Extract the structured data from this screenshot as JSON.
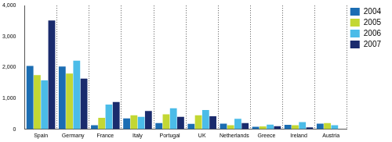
{
  "chart_data": {
    "type": "bar",
    "categories": [
      "Spain",
      "Germany",
      "France",
      "Italy",
      "Portugal",
      "UK",
      "Netherlands",
      "Greece",
      "Ireland",
      "Austria"
    ],
    "series": [
      {
        "name": "2004",
        "color": "#1b6db3",
        "values": [
          2050,
          2030,
          130,
          350,
          200,
          170,
          180,
          80,
          140,
          180
        ]
      },
      {
        "name": "2005",
        "color": "#c3d733",
        "values": [
          1750,
          1800,
          370,
          450,
          480,
          450,
          130,
          90,
          130,
          200
        ]
      },
      {
        "name": "2006",
        "color": "#4bbce8",
        "values": [
          1580,
          2220,
          800,
          400,
          680,
          620,
          340,
          150,
          230,
          130
        ]
      },
      {
        "name": "2007",
        "color": "#1a2b6d",
        "values": [
          3520,
          1640,
          880,
          590,
          400,
          420,
          200,
          100,
          60,
          null
        ]
      }
    ],
    "ylim": [
      0,
      4000
    ],
    "yticks": [
      0,
      {
        "value": 1000,
        "label": "1,000"
      },
      {
        "value": 2000,
        "label": "2,000"
      },
      {
        "value": 3000,
        "label": "3,000"
      },
      {
        "value": 4000,
        "label": "4,000"
      }
    ],
    "grid": true,
    "legend": "upper right"
  }
}
